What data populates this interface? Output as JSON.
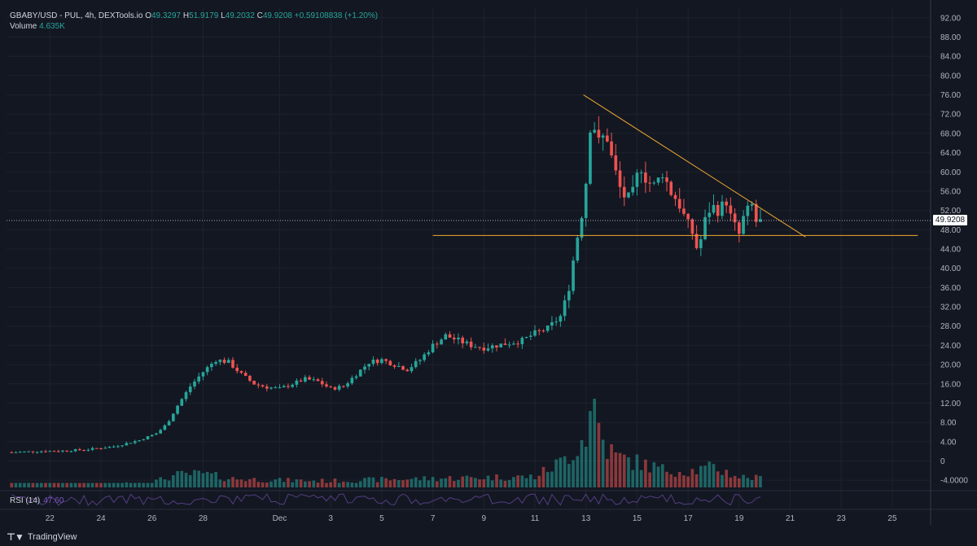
{
  "header": {
    "symbol_line": "GBABY/USD - PUL, 4h, DEXTools.io",
    "ohlc": {
      "o_label": "O",
      "o": "49.3297",
      "h_label": "H",
      "h": "51.9179",
      "l_label": "L",
      "l": "49.2032",
      "c_label": "C",
      "c": "49.9208",
      "change": "+0.59108838 (+1.20%)"
    },
    "volume_label": "Volume",
    "volume_value": "4.635K"
  },
  "last_price": "49.9208",
  "rsi": {
    "label": "RSI (14)",
    "value": "47.60"
  },
  "brand": {
    "name": "TradingView"
  },
  "colors": {
    "background": "#131722",
    "up": "#26a69a",
    "down": "#ef5350",
    "trendline": "#f0a830",
    "rsi": "#7e57c2"
  },
  "chart_data": {
    "type": "candlestick",
    "title": "GBABY/USD - PUL, 4h, DEXTools.io",
    "ylim": [
      -6,
      94
    ],
    "y_ticks": [
      "92.00",
      "88.00",
      "84.00",
      "80.00",
      "76.00",
      "72.00",
      "68.00",
      "64.00",
      "60.00",
      "56.00",
      "52.00",
      "48.00",
      "44.00",
      "40.00",
      "36.00",
      "32.00",
      "28.00",
      "24.00",
      "20.00",
      "16.00",
      "12.00",
      "8.00",
      "4.00",
      "0",
      "-4.0000"
    ],
    "y_tick_values": [
      92,
      88,
      84,
      80,
      76,
      72,
      68,
      64,
      60,
      56,
      52,
      48,
      44,
      40,
      36,
      32,
      28,
      24,
      20,
      16,
      12,
      8,
      4,
      0,
      -4
    ],
    "x_ticks": [
      "22",
      "24",
      "26",
      "28",
      "Dec",
      "3",
      "5",
      "7",
      "9",
      "11",
      "13",
      "15",
      "17",
      "19",
      "21",
      "23",
      "25"
    ],
    "x_tick_days": [
      22,
      24,
      26,
      28,
      31,
      33,
      35,
      37,
      39,
      41,
      43,
      45,
      47,
      49,
      51,
      53,
      55
    ],
    "x_range_days": [
      20.3,
      56.5
    ],
    "price_path": [
      [
        20.5,
        1.8
      ],
      [
        21.5,
        2.0
      ],
      [
        22.5,
        2.1
      ],
      [
        23.5,
        2.4
      ],
      [
        24.5,
        3.0
      ],
      [
        25.5,
        4.3
      ],
      [
        26.2,
        5.8
      ],
      [
        26.6,
        7.8
      ],
      [
        27.0,
        11.5
      ],
      [
        27.5,
        15.5
      ],
      [
        28.0,
        18.5
      ],
      [
        28.5,
        21.0
      ],
      [
        29.0,
        20.5
      ],
      [
        29.5,
        18.0
      ],
      [
        30.0,
        16.0
      ],
      [
        30.5,
        15.3
      ],
      [
        31.0,
        15.0
      ],
      [
        31.5,
        16.0
      ],
      [
        32.0,
        17.0
      ],
      [
        32.5,
        16.5
      ],
      [
        33.0,
        15.0
      ],
      [
        33.5,
        15.5
      ],
      [
        34.0,
        18.0
      ],
      [
        34.5,
        20.5
      ],
      [
        35.0,
        21.0
      ],
      [
        35.5,
        20.0
      ],
      [
        36.0,
        19.0
      ],
      [
        36.5,
        21.0
      ],
      [
        37.0,
        24.0
      ],
      [
        37.5,
        26.0
      ],
      [
        38.0,
        25.0
      ],
      [
        38.5,
        24.0
      ],
      [
        39.0,
        23.5
      ],
      [
        39.5,
        24.0
      ],
      [
        40.0,
        24.5
      ],
      [
        40.5,
        25.0
      ],
      [
        41.0,
        26.5
      ],
      [
        41.5,
        27.5
      ],
      [
        42.0,
        30.0
      ],
      [
        42.3,
        35.0
      ],
      [
        42.6,
        45.0
      ],
      [
        42.8,
        50.0
      ],
      [
        43.0,
        58.0
      ],
      [
        43.2,
        72.0
      ],
      [
        43.5,
        66.0
      ],
      [
        43.8,
        68.0
      ],
      [
        44.0,
        63.0
      ],
      [
        44.3,
        57.0
      ],
      [
        44.6,
        54.0
      ],
      [
        44.9,
        56.0
      ],
      [
        45.1,
        62.0
      ],
      [
        45.4,
        58.0
      ],
      [
        45.7,
        57.0
      ],
      [
        46.0,
        60.0
      ],
      [
        46.3,
        56.0
      ],
      [
        46.6,
        54.0
      ],
      [
        46.9,
        50.0
      ],
      [
        47.2,
        47.0
      ],
      [
        47.4,
        43.0
      ],
      [
        47.6,
        49.0
      ],
      [
        47.9,
        53.0
      ],
      [
        48.2,
        52.0
      ],
      [
        48.5,
        54.0
      ],
      [
        48.7,
        50.0
      ],
      [
        49.0,
        47.0
      ],
      [
        49.2,
        51.0
      ],
      [
        49.5,
        53.0
      ],
      [
        49.7,
        49.0
      ],
      [
        49.9,
        49.92
      ]
    ],
    "volume_profile": [
      [
        20.5,
        0.3
      ],
      [
        22,
        0.5
      ],
      [
        24,
        0.8
      ],
      [
        26,
        1.5
      ],
      [
        27,
        3.5
      ],
      [
        28,
        3.8
      ],
      [
        29,
        2.5
      ],
      [
        31,
        2.0
      ],
      [
        33,
        1.8
      ],
      [
        35,
        2.2
      ],
      [
        37,
        2.5
      ],
      [
        39,
        2.8
      ],
      [
        41,
        3.0
      ],
      [
        42,
        7.0
      ],
      [
        42.6,
        11.0
      ],
      [
        43.0,
        15.0
      ],
      [
        43.3,
        24.0
      ],
      [
        43.7,
        12.0
      ],
      [
        44.2,
        8.5
      ],
      [
        45,
        7.0
      ],
      [
        46,
        5.0
      ],
      [
        47,
        4.5
      ],
      [
        48,
        5.5
      ],
      [
        49,
        3.0
      ],
      [
        49.9,
        2.5
      ]
    ],
    "trendlines": [
      {
        "type": "descending",
        "from": [
          42.9,
          76.0
        ],
        "to": [
          51.6,
          46.5
        ]
      },
      {
        "type": "horizontal_support",
        "from": [
          37.0,
          46.8
        ],
        "to": [
          56.0,
          46.8
        ]
      }
    ],
    "last_price_value": 49.92,
    "grid": true
  }
}
